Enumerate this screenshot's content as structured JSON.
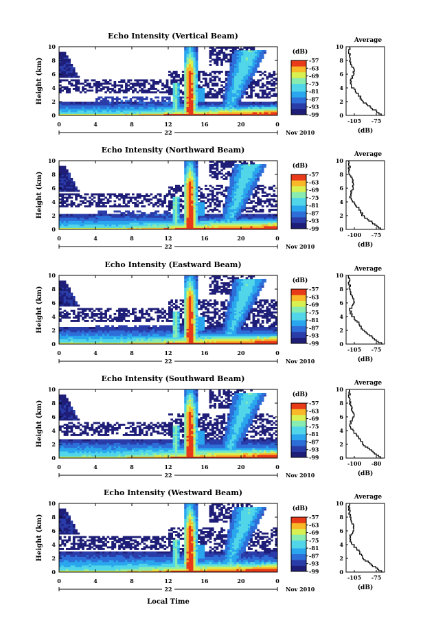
{
  "chart_data": {
    "type": "heatmap",
    "panels": [
      {
        "title": "Echo Intensity (Vertical Beam)",
        "avg_x_ticks": [
          "-105",
          "-75"
        ]
      },
      {
        "title": "Echo Intensity (Northward Beam)",
        "avg_x_ticks": [
          "-100",
          "-75"
        ]
      },
      {
        "title": "Echo Intensity (Eastward Beam)",
        "avg_x_ticks": [
          "-105",
          "-75"
        ]
      },
      {
        "title": "Echo Intensity (Southward Beam)",
        "avg_x_ticks": [
          "-100",
          "-80"
        ]
      },
      {
        "title": "Echo Intensity (Westward Beam)",
        "avg_x_ticks": [
          "-105",
          "-75"
        ]
      }
    ],
    "ylabel": "Height (km)",
    "y_ticks": [
      "0",
      "2",
      "4",
      "6",
      "8",
      "10"
    ],
    "ylim": [
      0,
      10
    ],
    "x_ticks": [
      "0",
      "4",
      "8",
      "12",
      "16",
      "20",
      "0"
    ],
    "xlim": [
      0,
      24
    ],
    "day_label": "22",
    "month_label": "Nov 2010",
    "xlabel": "Local Time",
    "colorbar_label": "(dB)",
    "colorbar_ticks": [
      "-57",
      "-63",
      "-69",
      "-75",
      "-81",
      "-87",
      "-93",
      "-99"
    ],
    "colorbar_range": [
      -99,
      -57
    ],
    "avg_title": "Average",
    "avg_xlabel": "(dB)",
    "colors": [
      "#1e1e78",
      "#2a3ca8",
      "#2e6ed8",
      "#2aa6ee",
      "#50d6e8",
      "#88ecb0",
      "#d8f050",
      "#f8b828",
      "#e83a18"
    ]
  }
}
